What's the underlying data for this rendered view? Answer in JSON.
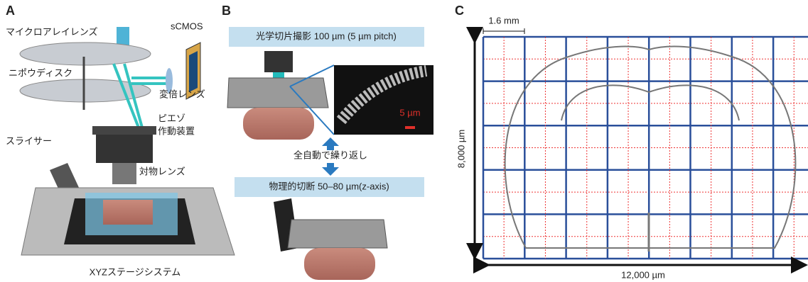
{
  "panel_a": {
    "label": "A",
    "microlens": "マイクロアレイレンズ",
    "camera": "sCMOS",
    "nipkow": "ニポウディスク",
    "zoom_lens": "変倍レンズ",
    "piezo_lines": [
      "ピエゾ",
      "作動装置"
    ],
    "slicer": "スライサー",
    "objective": "対物レンズ",
    "stage": "XYZステージシステム"
  },
  "panel_b": {
    "label": "B",
    "imaging": "光学切片撮影 100 µm (5 µm pitch)",
    "scale_bar": "5 µm",
    "repeat": "全自動で繰り返し",
    "cutting": "物理的切断 50–80 µm(z-axis)"
  },
  "panel_c": {
    "label": "C",
    "cell_size": "1.6 mm",
    "height": "8,000 µm",
    "width": "12,000 µm"
  }
}
